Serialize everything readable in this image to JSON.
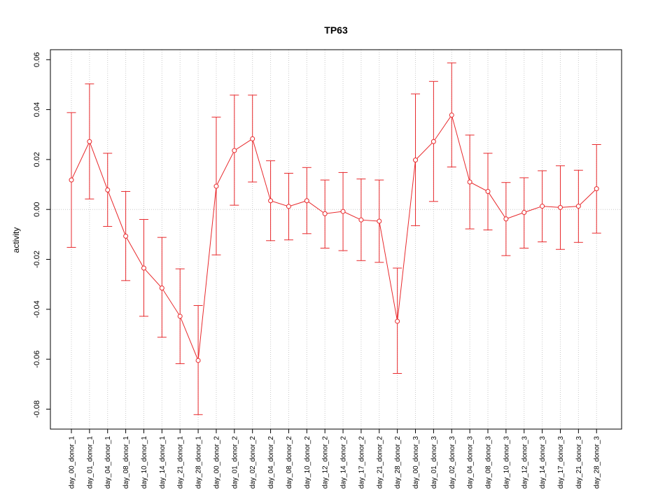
{
  "chart_data": {
    "type": "line",
    "title": "TP63",
    "xlabel": "",
    "ylabel": "activity",
    "ylim": [
      -0.088,
      0.064
    ],
    "y_ticks": [
      -0.08,
      -0.06,
      -0.04,
      -0.02,
      0.0,
      0.02,
      0.04,
      0.06
    ],
    "y_tick_labels": [
      "-0.08",
      "-0.06",
      "-0.04",
      "-0.02",
      "0.00",
      "0.02",
      "0.04",
      "0.06"
    ],
    "grid": "dotted vertical at each category; dotted horizontal at 0",
    "line_color": "#e8292c",
    "categories": [
      "day_00_donor_1",
      "day_01_donor_1",
      "day_04_donor_1",
      "day_08_donor_1",
      "day_10_donor_1",
      "day_14_donor_1",
      "day_21_donor_1",
      "day_28_donor_1",
      "day_00_donor_2",
      "day_01_donor_2",
      "day_02_donor_2",
      "day_04_donor_2",
      "day_08_donor_2",
      "day_10_donor_2",
      "day_12_donor_2",
      "day_14_donor_2",
      "day_17_donor_2",
      "day_21_donor_2",
      "day_28_donor_2",
      "day_00_donor_3",
      "day_01_donor_3",
      "day_02_donor_3",
      "day_04_donor_3",
      "day_08_donor_3",
      "day_10_donor_3",
      "day_12_donor_3",
      "day_14_donor_3",
      "day_17_donor_3",
      "day_21_donor_3",
      "day_28_donor_3"
    ],
    "values": [
      0.0118,
      0.0272,
      0.0078,
      -0.0107,
      -0.0235,
      -0.0315,
      -0.0428,
      -0.0605,
      0.0093,
      0.0236,
      0.0283,
      0.0035,
      0.0012,
      0.0035,
      -0.0017,
      -0.0008,
      -0.0042,
      -0.0047,
      -0.0448,
      0.0198,
      0.0272,
      0.0378,
      0.011,
      0.0072,
      -0.0038,
      -0.0012,
      0.0013,
      0.0008,
      0.0013,
      0.0083
    ],
    "lower": [
      -0.0152,
      0.0042,
      -0.0068,
      -0.0285,
      -0.0428,
      -0.0512,
      -0.0618,
      -0.0822,
      -0.0182,
      0.0017,
      0.011,
      -0.0125,
      -0.0122,
      -0.0097,
      -0.0155,
      -0.0165,
      -0.0205,
      -0.0212,
      -0.0657,
      -0.0065,
      0.0032,
      0.017,
      -0.0078,
      -0.0082,
      -0.0185,
      -0.0155,
      -0.013,
      -0.016,
      -0.0132,
      -0.0095
    ],
    "upper": [
      0.0388,
      0.0503,
      0.0225,
      0.0072,
      -0.004,
      -0.0112,
      -0.0238,
      -0.0385,
      0.037,
      0.0458,
      0.0458,
      0.0195,
      0.0145,
      0.0168,
      0.0118,
      0.0148,
      0.0122,
      0.0118,
      -0.0235,
      0.0463,
      0.0513,
      0.0587,
      0.0298,
      0.0225,
      0.0108,
      0.0127,
      0.0155,
      0.0175,
      0.0157,
      0.026
    ]
  }
}
